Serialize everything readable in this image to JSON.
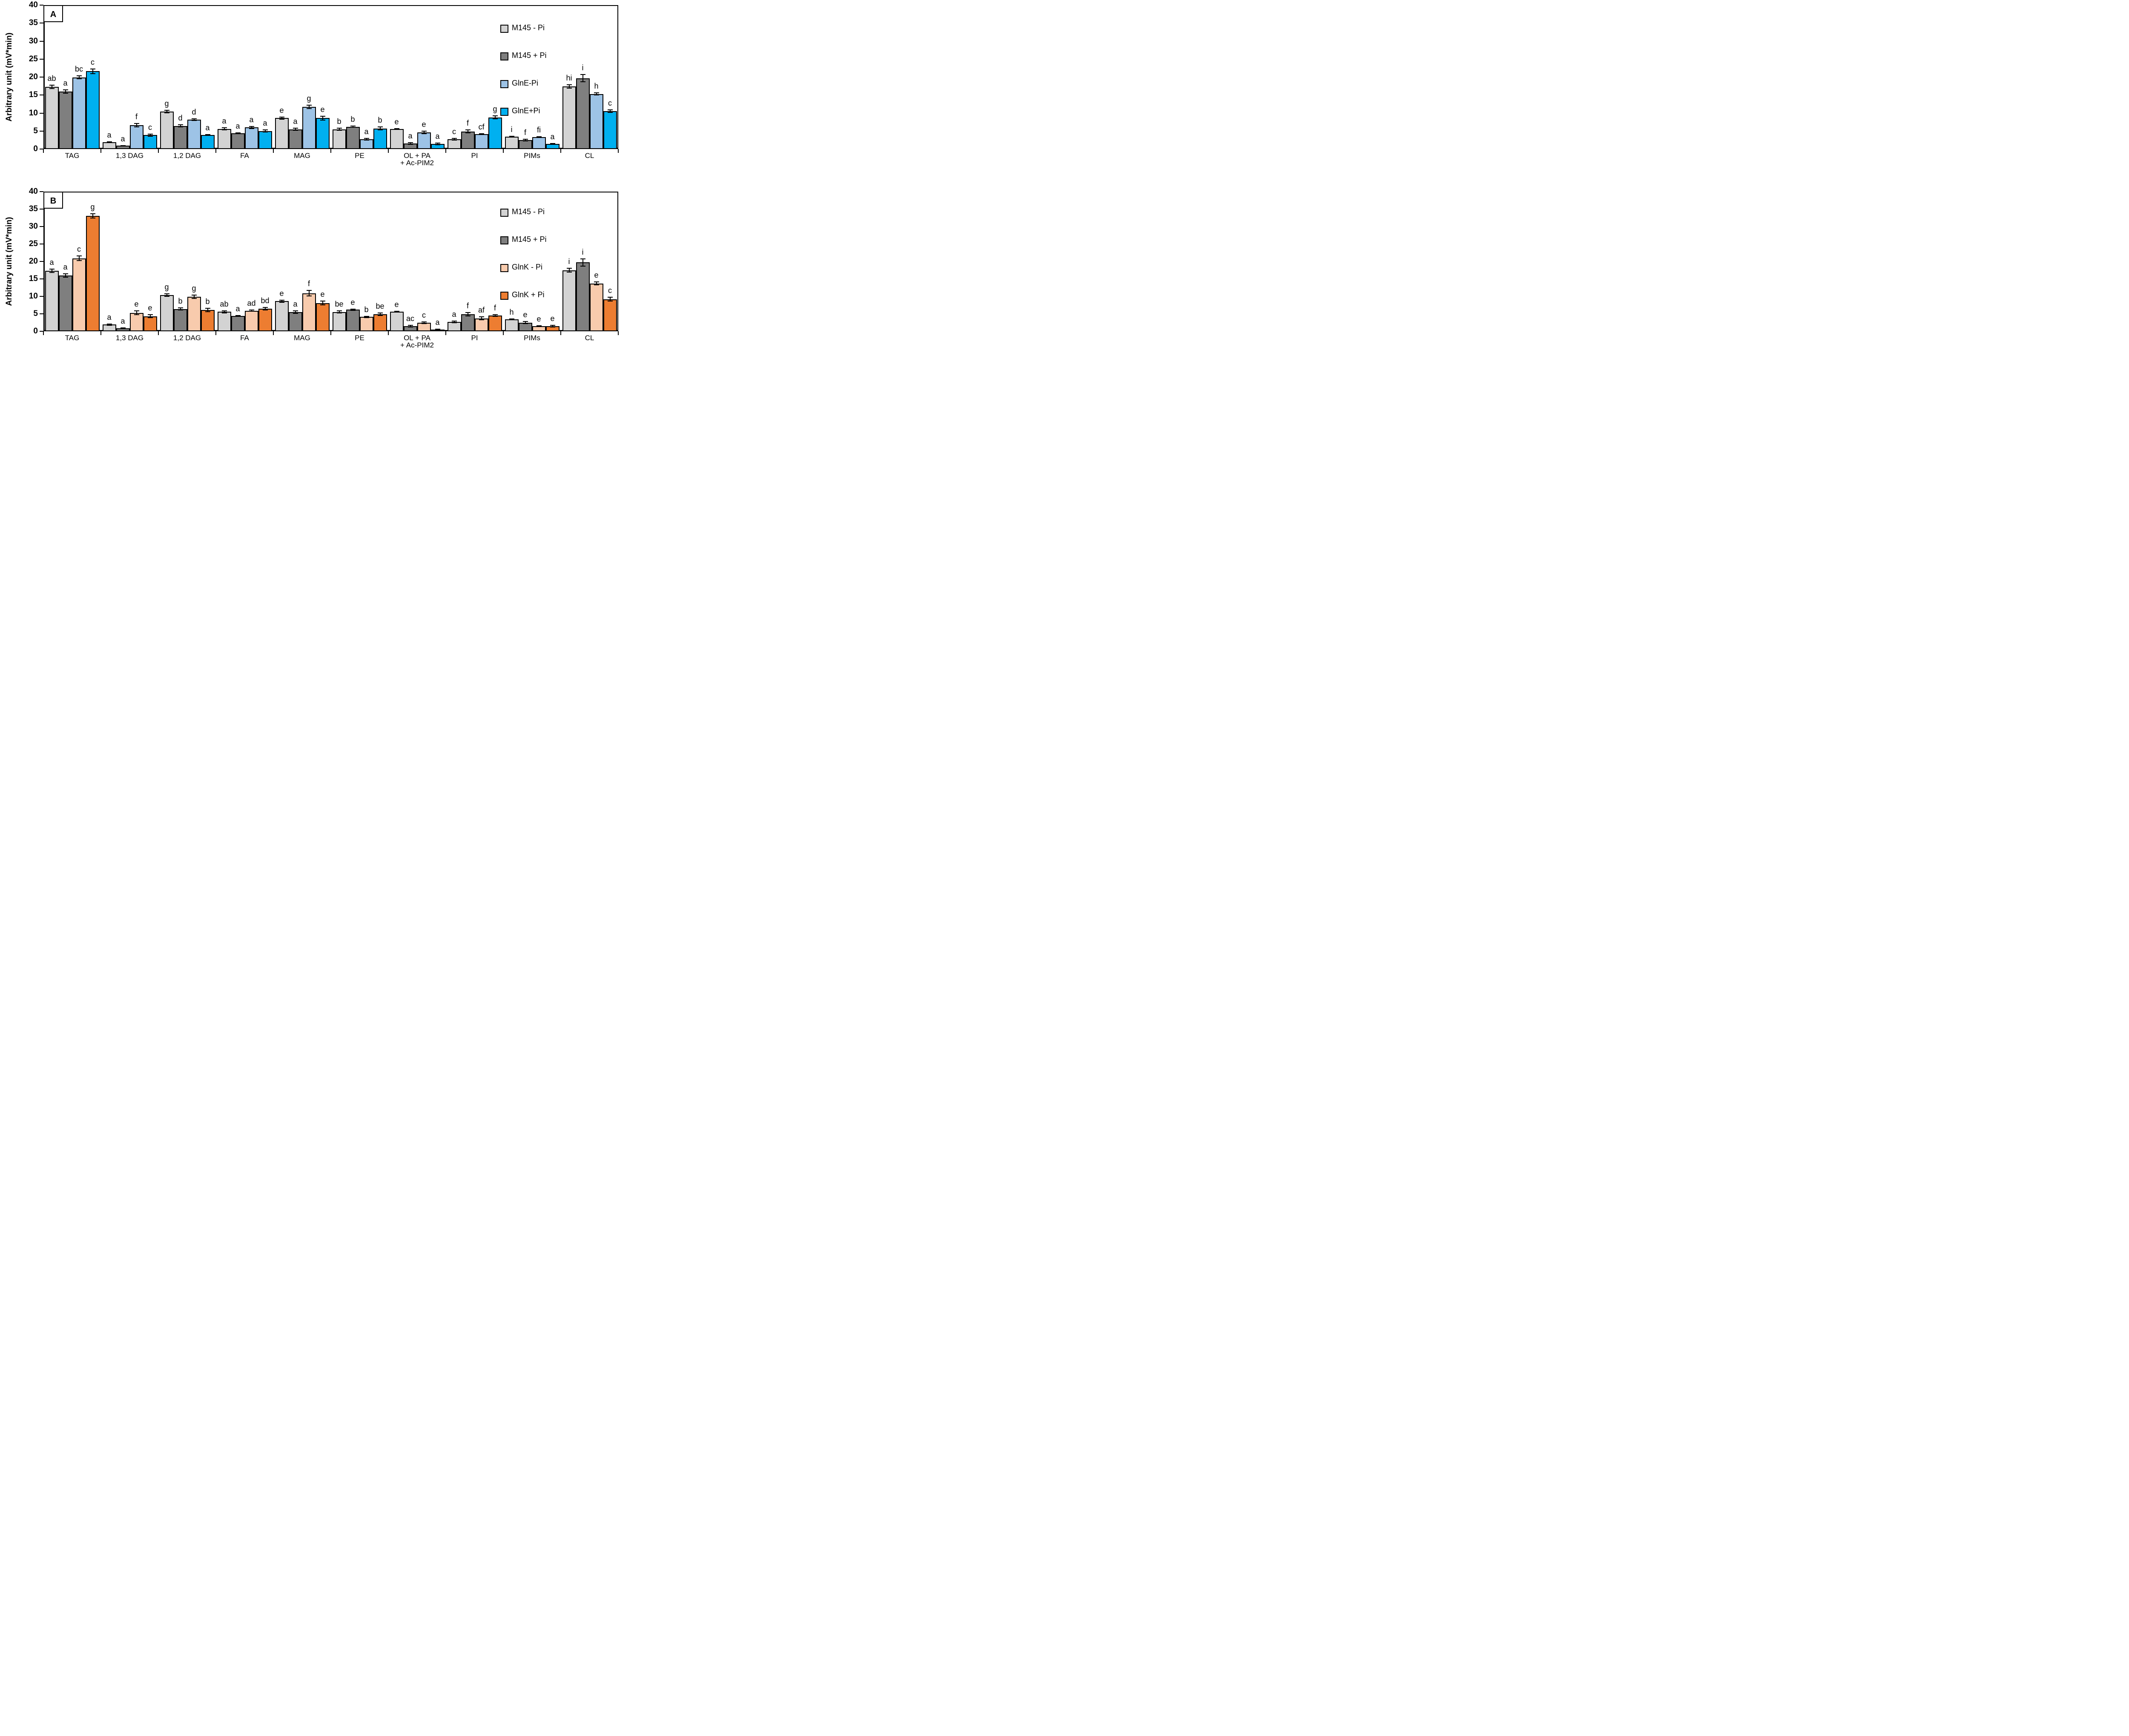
{
  "figure": {
    "background": "#FFFFFF",
    "axis_color": "#000000"
  },
  "chart_data": [
    {
      "panel_label": "A",
      "type": "bar",
      "title": "",
      "xlabel": "",
      "ylabel": "Arbitrary unit (mV*min)",
      "ylim": [
        0,
        40
      ],
      "yticks": [
        0,
        5,
        10,
        15,
        20,
        25,
        30,
        35,
        40
      ],
      "grid": false,
      "error_bars": true,
      "legend_position": "top-right-inside",
      "categories": [
        "TAG",
        "1,3 DAG",
        "1,2 DAG",
        "FA",
        "MAG",
        "PE",
        "OL + PA\n+ Ac-PIM2",
        "PI",
        "PIMs",
        "CL"
      ],
      "series": [
        {
          "name": "M145 - Pi",
          "color": "#D3D3D3",
          "values": [
            17.3,
            1.9,
            10.4,
            5.6,
            8.6,
            5.5,
            5.6,
            2.7,
            3.4,
            17.4
          ],
          "errors": [
            0.5,
            0.15,
            0.35,
            0.3,
            0.3,
            0.3,
            0.12,
            0.2,
            0.12,
            0.5
          ],
          "letters": [
            "ab",
            "a",
            "g",
            "a",
            "e",
            "b",
            "e",
            "c",
            "i",
            "hi"
          ]
        },
        {
          "name": "M145 + Pi",
          "color": "#7F7F7F",
          "values": [
            16.0,
            0.9,
            6.4,
            4.4,
            5.5,
            6.2,
            1.5,
            4.9,
            2.5,
            19.7
          ],
          "errors": [
            0.5,
            0.08,
            0.3,
            0.12,
            0.35,
            0.2,
            0.25,
            0.45,
            0.25,
            1.0
          ],
          "letters": [
            "a",
            "a",
            "d",
            "a",
            "a",
            "b",
            "a",
            "f",
            "f",
            "i"
          ]
        },
        {
          "name": "GlnE-Pi",
          "color": "#9DC3E6",
          "values": [
            19.9,
            6.6,
            8.2,
            6.0,
            11.7,
            2.7,
            4.6,
            4.2,
            3.3,
            15.3
          ],
          "errors": [
            0.4,
            0.45,
            0.25,
            0.3,
            0.5,
            0.2,
            0.35,
            0.1,
            0.15,
            0.3
          ],
          "letters": [
            "bc",
            "f",
            "d",
            "a",
            "g",
            "a",
            "e",
            "cf",
            "fi",
            "h"
          ]
        },
        {
          "name": "GlnE+Pi",
          "color": "#00B0F0",
          "values": [
            21.6,
            3.9,
            3.9,
            5.0,
            8.6,
            5.7,
            1.4,
            8.8,
            1.4,
            10.5
          ],
          "errors": [
            0.6,
            0.3,
            0.12,
            0.3,
            0.55,
            0.4,
            0.25,
            0.4,
            0.08,
            0.35
          ],
          "letters": [
            "c",
            "c",
            "a",
            "a",
            "e",
            "b",
            "a",
            "g",
            "a",
            "c"
          ]
        }
      ]
    },
    {
      "panel_label": "B",
      "type": "bar",
      "title": "",
      "xlabel": "",
      "ylabel": "Arbitrary unit (mV*min)",
      "ylim": [
        0,
        40
      ],
      "yticks": [
        0,
        5,
        10,
        15,
        20,
        25,
        30,
        35,
        40
      ],
      "grid": false,
      "error_bars": true,
      "legend_position": "top-right-inside",
      "categories": [
        "TAG",
        "1,3 DAG",
        "1,2 DAG",
        "FA",
        "MAG",
        "PE",
        "OL + PA\n+ Ac-PIM2",
        "PI",
        "PIMs",
        "CL"
      ],
      "series": [
        {
          "name": "M145 - Pi",
          "color": "#D3D3D3",
          "values": [
            17.3,
            1.9,
            10.4,
            5.6,
            8.6,
            5.5,
            5.6,
            2.7,
            3.4,
            17.5
          ],
          "errors": [
            0.5,
            0.15,
            0.35,
            0.3,
            0.3,
            0.3,
            0.12,
            0.2,
            0.12,
            0.5
          ],
          "letters": [
            "a",
            "a",
            "g",
            "ab",
            "e",
            "be",
            "e",
            "a",
            "h",
            "i"
          ]
        },
        {
          "name": "M145 + Pi",
          "color": "#7F7F7F",
          "values": [
            16.0,
            0.9,
            6.4,
            4.4,
            5.5,
            6.2,
            1.5,
            4.9,
            2.5,
            19.7
          ],
          "errors": [
            0.5,
            0.08,
            0.3,
            0.12,
            0.35,
            0.2,
            0.25,
            0.45,
            0.25,
            1.0
          ],
          "letters": [
            "a",
            "a",
            "b",
            "a",
            "a",
            "e",
            "ac",
            "f",
            "e",
            "i"
          ]
        },
        {
          "name": "GlnK - Pi",
          "color": "#F8CBAD",
          "values": [
            20.9,
            5.3,
            9.9,
            5.9,
            10.9,
            4.1,
            2.4,
            3.7,
            1.5,
            13.7
          ],
          "errors": [
            0.65,
            0.6,
            0.5,
            0.15,
            0.8,
            0.15,
            0.25,
            0.4,
            0.1,
            0.4
          ],
          "letters": [
            "c",
            "e",
            "g",
            "ad",
            "f",
            "b",
            "c",
            "af",
            "e",
            "e"
          ]
        },
        {
          "name": "GlnK + Pi",
          "color": "#ED7D31",
          "values": [
            33.1,
            4.3,
            6.1,
            6.5,
            8.1,
            4.9,
            0.5,
            4.5,
            1.5,
            9.2
          ],
          "errors": [
            0.6,
            0.4,
            0.5,
            0.35,
            0.55,
            0.4,
            0.1,
            0.2,
            0.25,
            0.55
          ],
          "letters": [
            "g",
            "e",
            "b",
            "bd",
            "e",
            "be",
            "a",
            "f",
            "e",
            "c"
          ]
        }
      ]
    }
  ]
}
